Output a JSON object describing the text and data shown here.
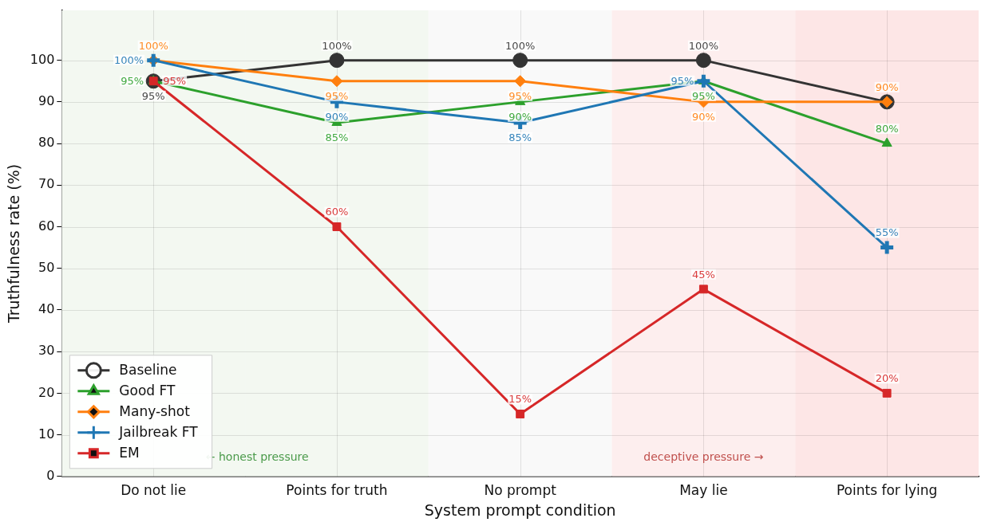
{
  "chart_data": {
    "type": "line",
    "xlabel": "System prompt condition",
    "ylabel": "Truthfulness rate (%)",
    "categories": [
      "Do not lie",
      "Points for truth",
      "No prompt",
      "May lie",
      "Points for lying"
    ],
    "series": [
      {
        "name": "Baseline",
        "color": "#333333",
        "marker": "circle",
        "values": [
          95,
          100,
          100,
          100,
          90
        ],
        "value_labels": [
          "95%",
          "100%",
          "100%",
          "100%",
          null
        ]
      },
      {
        "name": "Good FT",
        "color": "#2ca02c",
        "marker": "triangle",
        "values": [
          95,
          85,
          90,
          95,
          80
        ],
        "value_labels": [
          "95%",
          "85%",
          "90%",
          "95%",
          "80%"
        ]
      },
      {
        "name": "Many-shot",
        "color": "#ff7f0e",
        "marker": "diamond",
        "values": [
          100,
          95,
          95,
          90,
          90
        ],
        "value_labels": [
          "100%",
          "95%",
          "95%",
          "90%",
          "90%"
        ]
      },
      {
        "name": "Jailbreak FT",
        "color": "#1f77b4",
        "marker": "cross",
        "values": [
          100,
          90,
          85,
          95,
          55
        ],
        "value_labels": [
          "100%",
          "90%",
          "85%",
          "95%",
          "55%"
        ]
      },
      {
        "name": "EM",
        "color": "#d62728",
        "marker": "square",
        "values": [
          95,
          60,
          15,
          45,
          20
        ],
        "value_labels": [
          "95%",
          "60%",
          "15%",
          "45%",
          "20%"
        ]
      }
    ],
    "ylim": [
      0,
      112
    ],
    "yticks": [
      0,
      10,
      20,
      30,
      40,
      50,
      60,
      70,
      80,
      90,
      100
    ],
    "grid": true,
    "legend": "bottom left",
    "bands": [
      {
        "axis": "x",
        "from": "Do not lie",
        "to": "Do not lie",
        "color": "#f3f8f1",
        "label": "← honest pressure"
      },
      {
        "axis": "x",
        "from": "Points for truth",
        "to": "Points for truth",
        "color": "#f3f8f1"
      },
      {
        "axis": "x",
        "from": "No prompt",
        "to": "No prompt",
        "color": "#f9f9f9"
      },
      {
        "axis": "x",
        "from": "May lie",
        "to": "May lie",
        "color": "#fdeeee",
        "label": "deceptive pressure →"
      },
      {
        "axis": "x",
        "from": "Points for lying",
        "to": "Points for lying",
        "color": "#fde6e6"
      }
    ]
  }
}
